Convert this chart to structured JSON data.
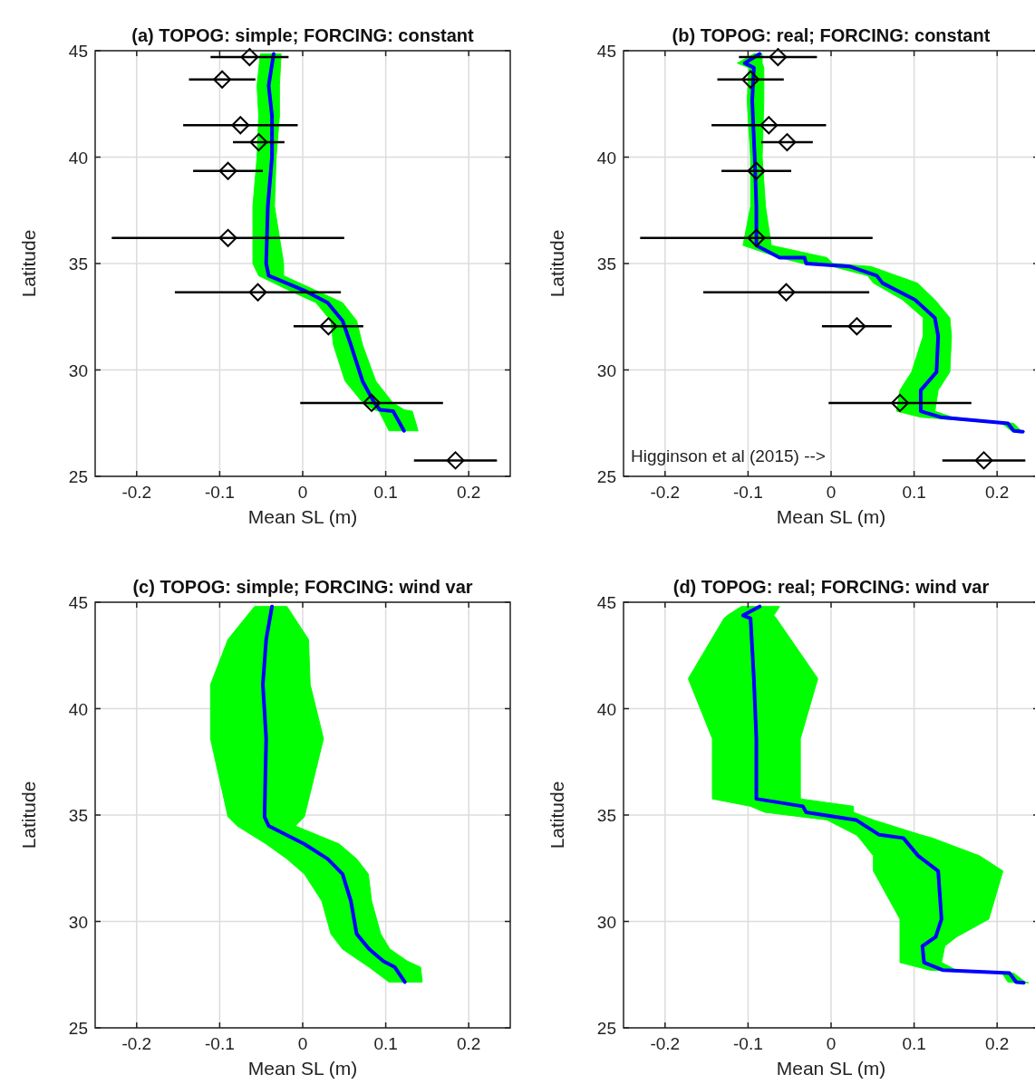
{
  "chart_data": [
    {
      "type": "line",
      "orientation": "horizontal",
      "title": "(a) TOPOG: simple; FORCING: constant",
      "xlabel": "Mean SL (m)",
      "ylabel": "Latitude",
      "xlim": [
        -0.25,
        0.25
      ],
      "xticks": [
        -0.2,
        -0.1,
        0,
        0.1,
        0.2
      ],
      "ylim": [
        25,
        45
      ],
      "yticks": [
        25,
        30,
        35,
        40,
        45
      ],
      "grid": true,
      "series": [
        {
          "color": "#0000ff",
          "x": [
            44.85,
            43.36,
            41.94,
            40,
            37.69,
            35,
            34.43,
            33.73,
            33.16,
            32.31,
            31.18,
            29.48,
            28.48,
            28.13,
            28.06,
            27.14
          ],
          "values": [
            -0.035,
            -0.041,
            -0.037,
            -0.037,
            -0.042,
            -0.044,
            -0.041,
            0.002,
            0.03,
            0.048,
            0.058,
            0.072,
            0.086,
            0.093,
            0.109,
            0.122
          ],
          "lower": [
            -0.051,
            -0.055,
            -0.053,
            -0.055,
            -0.06,
            -0.06,
            -0.053,
            -0.016,
            0.016,
            0.034,
            0.037,
            0.051,
            0.072,
            0.086,
            0.092,
            0.104
          ],
          "upper": [
            -0.026,
            -0.028,
            -0.028,
            -0.032,
            -0.034,
            -0.023,
            -0.023,
            0.016,
            0.048,
            0.065,
            0.072,
            0.088,
            0.108,
            0.122,
            0.132,
            0.139
          ]
        },
        {
          "type": "scatter",
          "color": "#000000",
          "marker": "diamond",
          "x": [
            44.7,
            43.65,
            41.5,
            40.7,
            39.35,
            36.2,
            33.65,
            32.05,
            28.45,
            25.75
          ],
          "values": [
            -0.064,
            -0.097,
            -0.075,
            -0.053,
            -0.09,
            -0.09,
            -0.054,
            0.031,
            0.083,
            0.184
          ],
          "errors": [
            0.047,
            0.04,
            0.069,
            0.031,
            0.042,
            0.14,
            0.1,
            0.042,
            0.086,
            0.05
          ]
        }
      ]
    },
    {
      "type": "line",
      "orientation": "horizontal",
      "title": "(b) TOPOG: real; FORCING: constant",
      "xlabel": "Mean SL (m)",
      "ylabel": "Latitude",
      "xlim": [
        -0.25,
        0.25
      ],
      "xticks": [
        -0.2,
        -0.1,
        0,
        0.1,
        0.2
      ],
      "ylim": [
        25,
        45
      ],
      "yticks": [
        25,
        30,
        35,
        40,
        45
      ],
      "grid": true,
      "annotations": [
        "Higginson et al (2015) -->"
      ],
      "series": [
        {
          "color": "#0000ff",
          "x": [
            44.85,
            44.42,
            44.2,
            42.65,
            40,
            37.69,
            35.85,
            35.28,
            35.28,
            35,
            34.86,
            34.43,
            34.08,
            33.3,
            32.45,
            31.6,
            29.9,
            29.05,
            28.06,
            27.78,
            27.49,
            27.14,
            27.1
          ],
          "values": [
            -0.086,
            -0.104,
            -0.093,
            -0.095,
            -0.092,
            -0.09,
            -0.09,
            -0.062,
            -0.032,
            -0.03,
            0.023,
            0.055,
            0.062,
            0.101,
            0.125,
            0.129,
            0.127,
            0.108,
            0.108,
            0.132,
            0.213,
            0.22,
            0.231
          ],
          "lower": [
            -0.093,
            -0.113,
            -0.099,
            -0.101,
            -0.097,
            -0.097,
            -0.106,
            -0.062,
            -0.062,
            -0.034,
            0.002,
            0.044,
            0.051,
            0.086,
            0.111,
            0.111,
            0.097,
            0.083,
            0.079,
            0.108,
            0.206,
            0.217,
            0.224
          ],
          "upper": [
            -0.083,
            -0.083,
            -0.081,
            -0.081,
            -0.083,
            -0.079,
            -0.072,
            -0.005,
            -0.005,
            0.002,
            0.048,
            0.079,
            0.104,
            0.125,
            0.143,
            0.145,
            0.143,
            0.129,
            0.125,
            0.146,
            0.22,
            0.229,
            0.233
          ]
        },
        {
          "type": "scatter",
          "color": "#000000",
          "marker": "diamond",
          "x": [
            44.7,
            43.65,
            41.5,
            40.7,
            39.35,
            36.2,
            33.65,
            32.05,
            28.45,
            25.75
          ],
          "values": [
            -0.064,
            -0.097,
            -0.075,
            -0.053,
            -0.09,
            -0.09,
            -0.054,
            0.031,
            0.083,
            0.184
          ],
          "errors": [
            0.047,
            0.04,
            0.069,
            0.031,
            0.042,
            0.14,
            0.1,
            0.042,
            0.086,
            0.05
          ]
        }
      ]
    },
    {
      "type": "line",
      "orientation": "horizontal",
      "title": "(c) TOPOG: simple; FORCING: wind var",
      "xlabel": "Mean SL (m)",
      "ylabel": "Latitude",
      "xlim": [
        -0.25,
        0.25
      ],
      "xticks": [
        -0.2,
        -0.1,
        0,
        0.1,
        0.2
      ],
      "ylim": [
        25,
        45
      ],
      "yticks": [
        25,
        30,
        35,
        40,
        45
      ],
      "grid": true,
      "series": [
        {
          "color": "#0000ff",
          "x": [
            44.8,
            43.25,
            41.13,
            38.59,
            34.92,
            34.49,
            33.64,
            32.94,
            32.23,
            30.96,
            29.41,
            28.7,
            28.14,
            27.85,
            27.15
          ],
          "values": [
            -0.037,
            -0.044,
            -0.048,
            -0.044,
            -0.046,
            -0.041,
            0.002,
            0.03,
            0.048,
            0.058,
            0.065,
            0.08,
            0.097,
            0.111,
            0.123
          ],
          "lower": [
            -0.058,
            -0.09,
            -0.111,
            -0.111,
            -0.09,
            -0.079,
            -0.044,
            -0.019,
            0.002,
            0.023,
            0.034,
            0.048,
            0.069,
            0.08,
            0.104
          ],
          "upper": [
            -0.019,
            0.007,
            0.009,
            0.025,
            0.002,
            -0.009,
            0.044,
            0.065,
            0.079,
            0.083,
            0.094,
            0.105,
            0.126,
            0.142,
            0.144
          ]
        }
      ]
    },
    {
      "type": "line",
      "orientation": "horizontal",
      "title": "(d) TOPOG: real; FORCING: wind var",
      "xlabel": "Mean SL (m)",
      "ylabel": "Latitude",
      "xlim": [
        -0.25,
        0.25
      ],
      "xticks": [
        -0.2,
        -0.1,
        0,
        0.1,
        0.2
      ],
      "ylim": [
        25,
        45
      ],
      "yticks": [
        25,
        30,
        35,
        40,
        45
      ],
      "grid": true,
      "series": [
        {
          "color": "#0000ff",
          "x": [
            44.8,
            44.38,
            44.24,
            41.41,
            38.59,
            35.76,
            35.41,
            35.13,
            34.77,
            34.07,
            33.92,
            33.08,
            32.37,
            30.11,
            29.27,
            28.84,
            28.07,
            27.71,
            27.57,
            27.15,
            27.12
          ],
          "values": [
            -0.086,
            -0.106,
            -0.097,
            -0.093,
            -0.09,
            -0.09,
            -0.034,
            -0.03,
            0.03,
            0.058,
            0.087,
            0.105,
            0.129,
            0.133,
            0.126,
            0.11,
            0.112,
            0.135,
            0.215,
            0.223,
            0.232
          ],
          "lower": [
            -0.108,
            -0.125,
            -0.129,
            -0.172,
            -0.143,
            -0.143,
            -0.097,
            -0.08,
            -0.005,
            0.03,
            0.034,
            0.051,
            0.051,
            0.083,
            0.083,
            0.083,
            0.083,
            0.119,
            0.206,
            0.213,
            0.224
          ],
          "upper": [
            -0.062,
            -0.069,
            -0.066,
            -0.016,
            -0.037,
            -0.037,
            0.027,
            0.027,
            0.051,
            0.108,
            0.122,
            0.179,
            0.207,
            0.19,
            0.151,
            0.137,
            0.133,
            0.151,
            0.22,
            0.234,
            0.238
          ]
        }
      ]
    }
  ]
}
